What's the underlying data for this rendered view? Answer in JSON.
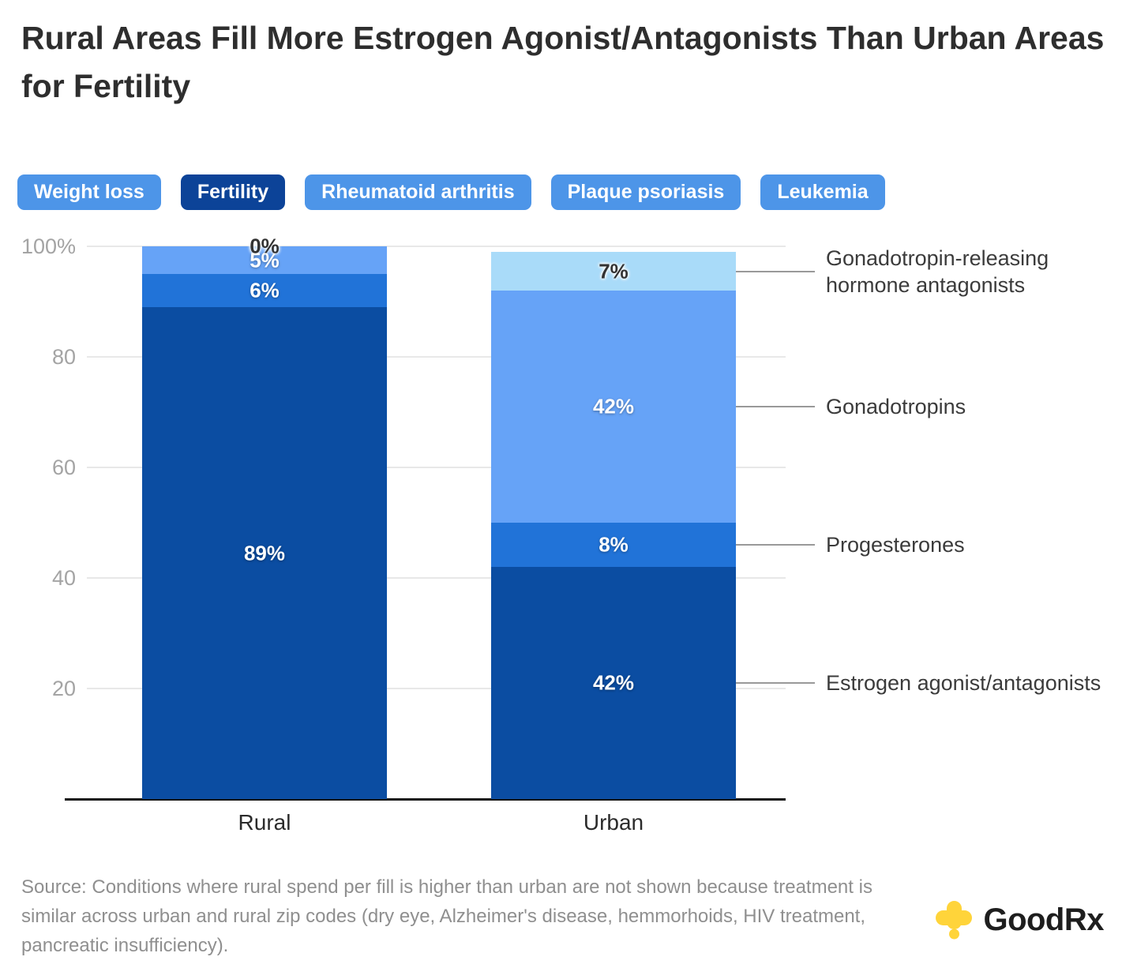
{
  "title": "Rural Areas Fill More Estrogen Agonist/Antagonists Than Urban Areas for Fertility",
  "tabs": [
    {
      "label": "Weight loss",
      "active": false
    },
    {
      "label": "Fertility",
      "active": true
    },
    {
      "label": "Rheumatoid arthritis",
      "active": false
    },
    {
      "label": "Plaque psoriasis",
      "active": false
    },
    {
      "label": "Leukemia",
      "active": false
    }
  ],
  "colors": {
    "tab": "#4d95e8",
    "tab_active": "#0c4398",
    "grid": "#e8e8e8",
    "axis": "#141414",
    "leader": "#999999",
    "tick_text": "#a4a4a4"
  },
  "chart_data": {
    "type": "bar",
    "stacked": true,
    "categories": [
      "Rural",
      "Urban"
    ],
    "series": [
      {
        "name": "Estrogen agonist/antagonists",
        "color": "#0b4da2",
        "values": [
          89,
          42
        ],
        "labels": [
          "89%",
          "42%"
        ],
        "label_color": "#ffffff"
      },
      {
        "name": "Progesterones",
        "color": "#2173d8",
        "values": [
          6,
          8
        ],
        "labels": [
          "6%",
          "8%"
        ],
        "label_color": "#ffffff"
      },
      {
        "name": "Gonadotropins",
        "color": "#66a3f7",
        "values": [
          5,
          42
        ],
        "labels": [
          "5%",
          "42%"
        ],
        "label_color": "#ffffff"
      },
      {
        "name": "Gonadotropin-releasing hormone antagonists",
        "color": "#a9dbf9",
        "values": [
          0,
          7
        ],
        "labels": [
          "0%",
          "7%"
        ],
        "label_color": "#333333"
      }
    ],
    "right_labels": [
      "Gonadotropin-releasing hormone antagonists",
      "Gonadotropins",
      "Progesterones",
      "Estrogen agonist/antagonists"
    ],
    "yticks": [
      {
        "value": 20,
        "label": "20"
      },
      {
        "value": 40,
        "label": "40"
      },
      {
        "value": 60,
        "label": "60"
      },
      {
        "value": 80,
        "label": "80"
      },
      {
        "value": 100,
        "label": "100%"
      }
    ],
    "ylim": [
      0,
      100
    ],
    "grid": true,
    "legend": "right-annotations"
  },
  "source": {
    "text": "Source: Conditions where rural spend per fill is higher than urban are not shown because treatment is similar across urban and rural zip codes (dry eye, Alzheimer's disease, hemmorhoids, HIV treatment, pancreatic insufficiency)."
  },
  "logo": {
    "text": "GoodRx",
    "cross_color": "#ffd43a"
  }
}
